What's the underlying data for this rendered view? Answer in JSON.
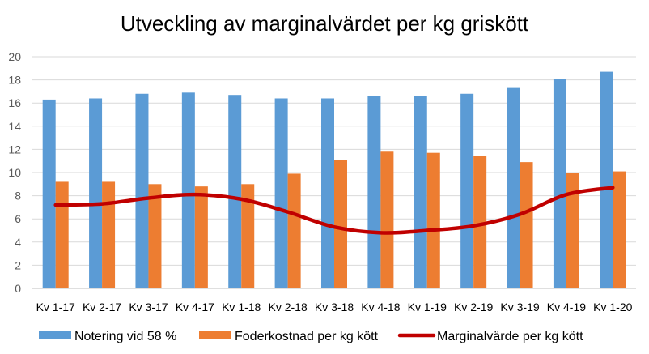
{
  "chart_data": {
    "type": "bar",
    "title": "Utveckling av marginalvärdet per kg griskött",
    "categories": [
      "Kv 1-17",
      "Kv 2-17",
      "Kv 3-17",
      "Kv 4-17",
      "Kv 1-18",
      "Kv 2-18",
      "Kv 3-18",
      "Kv 4-18",
      "Kv 1-19",
      "Kv 2-19",
      "Kv 3-19",
      "Kv 4-19",
      "Kv 1-20"
    ],
    "ylim": [
      0,
      20
    ],
    "yticks": [
      0,
      2,
      4,
      6,
      8,
      10,
      12,
      14,
      16,
      18,
      20
    ],
    "grid": true,
    "legend_position": "bottom",
    "series": [
      {
        "name": "Notering vid 58 %",
        "kind": "bar",
        "color": "#5B9BD5",
        "values": [
          16.3,
          16.4,
          16.8,
          16.9,
          16.7,
          16.4,
          16.4,
          16.6,
          16.6,
          16.8,
          17.3,
          18.1,
          18.7
        ]
      },
      {
        "name": "Foderkostnad per kg kött",
        "kind": "bar",
        "color": "#ED7D31",
        "values": [
          9.2,
          9.2,
          9.0,
          8.8,
          9.0,
          9.9,
          11.1,
          11.8,
          11.7,
          11.4,
          10.9,
          10.0,
          10.1
        ]
      },
      {
        "name": "Marginalvärde per kg kött",
        "kind": "line",
        "color": "#C00000",
        "values": [
          7.2,
          7.3,
          7.8,
          8.1,
          7.7,
          6.6,
          5.3,
          4.8,
          5.0,
          5.4,
          6.4,
          8.1,
          8.7
        ]
      }
    ]
  }
}
